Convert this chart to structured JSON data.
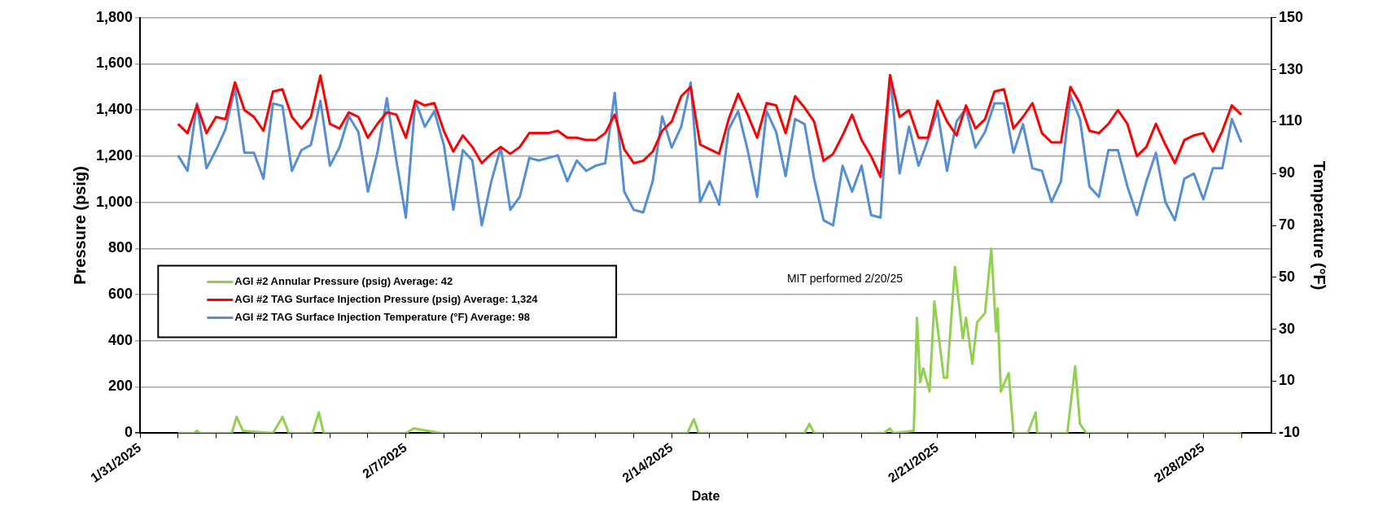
{
  "chart_data": {
    "type": "line",
    "xlabel": "Date",
    "ylabel": "Pressure (psig)",
    "y2label": "Temperature (°F)",
    "xlim": [
      "2025-01-31",
      "2025-03-01T19:00"
    ],
    "xticks": [
      {
        "value": "2025-01-31",
        "label": "1/31/2025"
      },
      {
        "value": "2025-02-01",
        "label": null
      },
      {
        "value": "2025-02-02",
        "label": null
      },
      {
        "value": "2025-02-03",
        "label": null
      },
      {
        "value": "2025-02-04",
        "label": null
      },
      {
        "value": "2025-02-05",
        "label": null
      },
      {
        "value": "2025-02-06",
        "label": null
      },
      {
        "value": "2025-02-07",
        "label": "2/7/2025"
      },
      {
        "value": "2025-02-08",
        "label": null
      },
      {
        "value": "2025-02-09",
        "label": null
      },
      {
        "value": "2025-02-10",
        "label": null
      },
      {
        "value": "2025-02-11",
        "label": null
      },
      {
        "value": "2025-02-12",
        "label": null
      },
      {
        "value": "2025-02-13",
        "label": null
      },
      {
        "value": "2025-02-14",
        "label": "2/14/2025"
      },
      {
        "value": "2025-02-15",
        "label": null
      },
      {
        "value": "2025-02-16",
        "label": null
      },
      {
        "value": "2025-02-17",
        "label": null
      },
      {
        "value": "2025-02-18",
        "label": null
      },
      {
        "value": "2025-02-19",
        "label": null
      },
      {
        "value": "2025-02-20",
        "label": null
      },
      {
        "value": "2025-02-21",
        "label": "2/21/2025"
      },
      {
        "value": "2025-02-22",
        "label": null
      },
      {
        "value": "2025-02-23",
        "label": null
      },
      {
        "value": "2025-02-24",
        "label": null
      },
      {
        "value": "2025-02-25",
        "label": null
      },
      {
        "value": "2025-02-26",
        "label": null
      },
      {
        "value": "2025-02-27",
        "label": null
      },
      {
        "value": "2025-02-28",
        "label": "2/28/2025"
      },
      {
        "value": "2025-03-01",
        "label": null
      }
    ],
    "ylim": [
      0,
      1800
    ],
    "yticks": [
      0,
      200,
      400,
      600,
      800,
      {
        "value": 1000,
        "label": "1,000"
      },
      {
        "value": 1200,
        "label": "1,200"
      },
      {
        "value": 1400,
        "label": "1,400"
      },
      {
        "value": 1600,
        "label": "1,600"
      },
      {
        "value": 1800,
        "label": "1,800"
      }
    ],
    "y2lim": [
      -10,
      150
    ],
    "y2ticks": [
      -10,
      10,
      30,
      50,
      70,
      90,
      110,
      130,
      150
    ],
    "grid": "y",
    "legend": "bottom left",
    "annotations": [
      "MIT performed 2/20/25"
    ],
    "x": [
      "2025-02-01T00:00",
      "2025-02-01T06:00",
      "2025-02-01T12:00",
      "2025-02-01T18:00",
      "2025-02-02T00:00",
      "2025-02-02T06:00",
      "2025-02-02T12:00",
      "2025-02-02T18:00",
      "2025-02-03T00:00",
      "2025-02-03T06:00",
      "2025-02-03T12:00",
      "2025-02-03T18:00",
      "2025-02-04T00:00",
      "2025-02-04T06:00",
      "2025-02-04T12:00",
      "2025-02-04T18:00",
      "2025-02-05T00:00",
      "2025-02-05T06:00",
      "2025-02-05T12:00",
      "2025-02-05T18:00",
      "2025-02-06T00:00",
      "2025-02-06T06:00",
      "2025-02-06T12:00",
      "2025-02-06T18:00",
      "2025-02-07T00:00",
      "2025-02-07T06:00",
      "2025-02-07T12:00",
      "2025-02-07T18:00",
      "2025-02-08T00:00",
      "2025-02-08T06:00",
      "2025-02-08T12:00",
      "2025-02-08T18:00",
      "2025-02-09T00:00",
      "2025-02-09T06:00",
      "2025-02-09T12:00",
      "2025-02-09T18:00",
      "2025-02-10T00:00",
      "2025-02-10T06:00",
      "2025-02-10T12:00",
      "2025-02-10T18:00",
      "2025-02-11T00:00",
      "2025-02-11T06:00",
      "2025-02-11T12:00",
      "2025-02-11T18:00",
      "2025-02-12T00:00",
      "2025-02-12T06:00",
      "2025-02-12T12:00",
      "2025-02-12T18:00",
      "2025-02-13T00:00",
      "2025-02-13T06:00",
      "2025-02-13T12:00",
      "2025-02-13T18:00",
      "2025-02-14T00:00",
      "2025-02-14T06:00",
      "2025-02-14T12:00",
      "2025-02-14T18:00",
      "2025-02-15T00:00",
      "2025-02-15T06:00",
      "2025-02-15T12:00",
      "2025-02-15T18:00",
      "2025-02-16T00:00",
      "2025-02-16T06:00",
      "2025-02-16T12:00",
      "2025-02-16T18:00",
      "2025-02-17T00:00",
      "2025-02-17T06:00",
      "2025-02-17T12:00",
      "2025-02-17T18:00",
      "2025-02-18T00:00",
      "2025-02-18T06:00",
      "2025-02-18T12:00",
      "2025-02-18T18:00",
      "2025-02-19T00:00",
      "2025-02-19T06:00",
      "2025-02-19T12:00",
      "2025-02-19T18:00",
      "2025-02-20T00:00",
      "2025-02-20T06:00",
      "2025-02-20T12:00",
      "2025-02-20T18:00",
      "2025-02-21T00:00",
      "2025-02-21T06:00",
      "2025-02-21T12:00",
      "2025-02-21T18:00",
      "2025-02-22T00:00",
      "2025-02-22T06:00",
      "2025-02-22T12:00",
      "2025-02-22T18:00",
      "2025-02-23T00:00",
      "2025-02-23T06:00",
      "2025-02-23T12:00",
      "2025-02-23T18:00",
      "2025-02-24T00:00",
      "2025-02-24T06:00",
      "2025-02-24T12:00",
      "2025-02-24T18:00",
      "2025-02-25T00:00",
      "2025-02-25T06:00",
      "2025-02-25T12:00",
      "2025-02-25T18:00",
      "2025-02-26T00:00",
      "2025-02-26T06:00",
      "2025-02-26T12:00",
      "2025-02-26T18:00",
      "2025-02-27T00:00",
      "2025-02-27T06:00",
      "2025-02-27T12:00",
      "2025-02-27T18:00",
      "2025-02-28T00:00",
      "2025-02-28T06:00",
      "2025-02-28T12:00",
      "2025-02-28T18:00",
      "2025-03-01T00:00"
    ],
    "series": [
      {
        "name": "AGI #2 Annular Pressure (psig) Average: 42",
        "color": "#92d050",
        "x": [
          "2025-02-01T00:00",
          "2025-02-01T10:00",
          "2025-02-01T12:00",
          "2025-02-01T14:00",
          "2025-02-02T10:00",
          "2025-02-02T13:00",
          "2025-02-02T17:00",
          "2025-02-03T12:00",
          "2025-02-03T18:00",
          "2025-02-03T22:00",
          "2025-02-04T13:00",
          "2025-02-04T17:00",
          "2025-02-04T20:00",
          "2025-02-07T00:00",
          "2025-02-07T05:00",
          "2025-02-07T22:00",
          "2025-02-14T10:00",
          "2025-02-14T14:00",
          "2025-02-14T17:00",
          "2025-02-17T12:00",
          "2025-02-17T15:00",
          "2025-02-17T18:00",
          "2025-02-19T14:00",
          "2025-02-19T18:00",
          "2025-02-19T20:00",
          "2025-02-20T09:00",
          "2025-02-20T11:00",
          "2025-02-20T13:00",
          "2025-02-20T15:00",
          "2025-02-20T19:00",
          "2025-02-20T22:00",
          "2025-02-21T04:00",
          "2025-02-21T06:00",
          "2025-02-21T11:00",
          "2025-02-21T16:00",
          "2025-02-21T18:00",
          "2025-02-21T22:00",
          "2025-02-22T01:00",
          "2025-02-22T06:00",
          "2025-02-22T10:00",
          "2025-02-22T13:00",
          "2025-02-22T14:00",
          "2025-02-22T16:00",
          "2025-02-22T21:00",
          "2025-02-23T00:00",
          "2025-02-23T09:00",
          "2025-02-23T14:00",
          "2025-02-23T15:00",
          "2025-02-24T10:00",
          "2025-02-24T15:00",
          "2025-02-24T18:00",
          "2025-02-24T22:00",
          "2025-03-01T00:00"
        ],
        "values": [
          0,
          0,
          10,
          0,
          0,
          70,
          10,
          0,
          70,
          0,
          0,
          90,
          0,
          0,
          20,
          0,
          0,
          60,
          0,
          0,
          40,
          0,
          0,
          20,
          0,
          10,
          500,
          220,
          280,
          180,
          570,
          240,
          240,
          720,
          410,
          500,
          300,
          480,
          520,
          800,
          440,
          540,
          180,
          260,
          0,
          0,
          90,
          0,
          0,
          290,
          40,
          0,
          0
        ]
      },
      {
        "name": "AGI #2 TAG Surface Injection Pressure (psig) Average: 1,324",
        "color": "#ff0000",
        "values": [
          1340,
          1300,
          1420,
          1300,
          1370,
          1360,
          1520,
          1400,
          1370,
          1310,
          1480,
          1490,
          1370,
          1320,
          1370,
          1550,
          1340,
          1320,
          1390,
          1370,
          1280,
          1340,
          1390,
          1380,
          1280,
          1440,
          1420,
          1430,
          1310,
          1220,
          1290,
          1240,
          1170,
          1210,
          1240,
          1210,
          1240,
          1300,
          1300,
          1300,
          1310,
          1280,
          1280,
          1270,
          1270,
          1300,
          1380,
          1230,
          1170,
          1180,
          1220,
          1310,
          1350,
          1460,
          1500,
          1250,
          1230,
          1210,
          1360,
          1470,
          1380,
          1280,
          1430,
          1420,
          1300,
          1460,
          1410,
          1350,
          1180,
          1210,
          1290,
          1380,
          1270,
          1200,
          1110,
          1550,
          1370,
          1400,
          1280,
          1280,
          1440,
          1350,
          1290,
          1420,
          1320,
          1360,
          1480,
          1490,
          1320,
          1370,
          1430,
          1300,
          1260,
          1260,
          1500,
          1430,
          1310,
          1300,
          1340,
          1400,
          1340,
          1200,
          1240,
          1340,
          1250,
          1170,
          1270,
          1290,
          1300,
          1220,
          1310,
          1420,
          1380
        ]
      },
      {
        "name": "AGI #2 TAG Surface Injection Temperature (°F) Average: 98",
        "color": "#558ed5",
        "axis": "y2",
        "values": [
          97,
          91,
          117,
          92,
          99,
          107,
          123,
          98,
          98,
          88,
          117,
          116,
          91,
          99,
          101,
          118,
          93,
          100,
          112,
          106,
          83,
          98,
          119,
          95,
          73,
          118,
          108,
          114,
          101,
          76,
          99,
          95,
          70,
          87,
          100,
          76,
          81,
          96,
          95,
          96,
          97,
          87,
          95,
          91,
          93,
          94,
          121,
          83,
          76,
          75,
          87,
          112,
          100,
          108,
          125,
          79,
          87,
          78,
          107,
          114,
          99,
          81,
          114,
          106,
          89,
          111,
          109,
          88,
          72,
          70,
          93,
          83,
          93,
          74,
          73,
          128,
          90,
          108,
          93,
          103,
          114,
          91,
          110,
          115,
          100,
          106,
          117,
          117,
          98,
          109,
          92,
          91,
          79,
          87,
          120,
          111,
          85,
          81,
          99,
          99,
          85,
          74,
          87,
          98,
          79,
          72,
          88,
          90,
          80,
          92,
          92,
          111,
          102
        ]
      }
    ]
  }
}
